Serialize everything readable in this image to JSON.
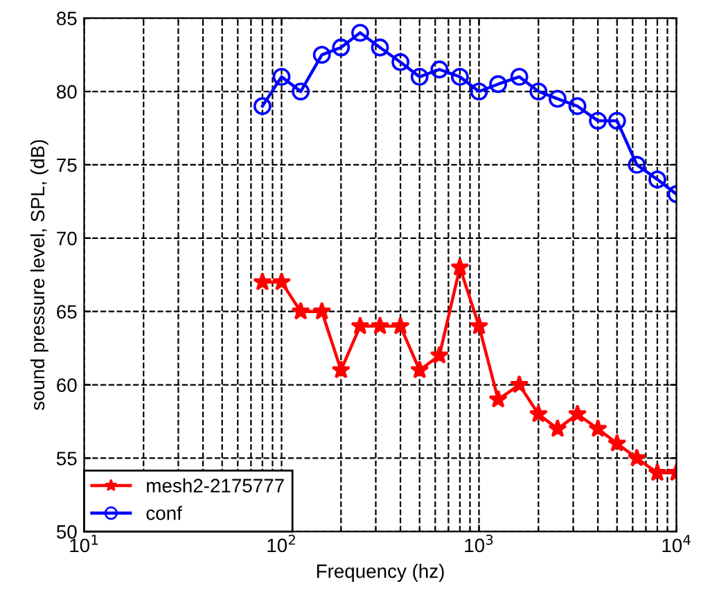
{
  "chart_data": {
    "type": "line",
    "xlabel": "Frequency (hz)",
    "ylabel": "sound pressure level, SPL, (dB)",
    "x": [
      80,
      100,
      125,
      160,
      200,
      250,
      315,
      400,
      500,
      630,
      800,
      1000,
      1250,
      1600,
      2000,
      2500,
      3150,
      4000,
      5000,
      6300,
      8000,
      10000
    ],
    "series": [
      {
        "name": "mesh2-2175777",
        "color": "#ff0000",
        "marker": "star",
        "values": [
          67,
          67,
          65,
          65,
          61,
          64,
          64,
          64,
          61,
          62,
          68,
          64,
          59,
          60,
          58,
          57,
          58,
          57,
          56,
          55,
          54,
          54
        ]
      },
      {
        "name": "conf",
        "color": "#0000ff",
        "marker": "circle",
        "values": [
          79,
          81,
          80,
          82.5,
          83,
          84,
          83,
          82,
          81,
          81.5,
          81,
          80,
          80.5,
          81,
          80,
          79.5,
          79,
          78,
          78,
          75,
          74,
          73
        ]
      }
    ],
    "log": "x",
    "xlim": [
      10,
      10000
    ],
    "xticks": [
      {
        "value": 10,
        "label": "10$^{1}$"
      },
      {
        "value": 100,
        "label": "10$^{2}$"
      },
      {
        "value": 1000,
        "label": "10$^{3}$"
      },
      {
        "value": 10000,
        "label": "10$^{4}$"
      }
    ],
    "ylim": [
      50,
      85
    ],
    "yticks": [
      50,
      55,
      60,
      65,
      70,
      75,
      80,
      85
    ],
    "grid": true,
    "legend": "bottom left",
    "line_style": "solid"
  }
}
